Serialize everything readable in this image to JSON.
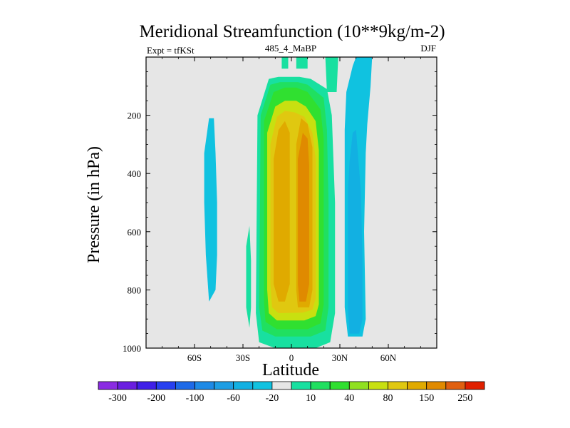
{
  "chart_data": {
    "type": "contour",
    "title": "Meridional Streamfunction (10**9kg/m-2)",
    "left_label": "Expt = tfKSt",
    "center_label": "485_4_MaBP",
    "right_label": "DJF",
    "xlabel": "Latitude",
    "ylabel": "Pressure (in hPa)",
    "xlim": [
      -90,
      90
    ],
    "ylim": [
      1000,
      0
    ],
    "x_ticks": [
      {
        "value": -60,
        "label": "60S"
      },
      {
        "value": -30,
        "label": "30S"
      },
      {
        "value": 0,
        "label": "0"
      },
      {
        "value": 30,
        "label": "30N"
      },
      {
        "value": 60,
        "label": "60N"
      }
    ],
    "y_ticks": [
      {
        "value": 200,
        "label": "200"
      },
      {
        "value": 400,
        "label": "400"
      },
      {
        "value": 600,
        "label": "600"
      },
      {
        "value": 800,
        "label": "800"
      },
      {
        "value": 1000,
        "label": "1000"
      }
    ],
    "background_color": "#e6e6e6",
    "levels": [
      {
        "min": -300,
        "label": "-300",
        "color": "#8a2be2"
      },
      {
        "min": -250,
        "label": "",
        "color": "#6a1fe0"
      },
      {
        "min": -200,
        "label": "-200",
        "color": "#4020e8"
      },
      {
        "min": -150,
        "label": "",
        "color": "#2840f0"
      },
      {
        "min": -100,
        "label": "-100",
        "color": "#1e6ae8"
      },
      {
        "min": -80,
        "label": "",
        "color": "#1e8ae6"
      },
      {
        "min": -60,
        "label": "-60",
        "color": "#1e9ee4"
      },
      {
        "min": -40,
        "label": "",
        "color": "#12b0e2"
      },
      {
        "min": -20,
        "label": "-20",
        "color": "#10c2e0"
      },
      {
        "min": -10,
        "label": "",
        "color": "#e6e6e6"
      },
      {
        "min": 10,
        "label": "10",
        "color": "#18e0a0"
      },
      {
        "min": 20,
        "label": "",
        "color": "#20e060"
      },
      {
        "min": 40,
        "label": "40",
        "color": "#30e030"
      },
      {
        "min": 60,
        "label": "",
        "color": "#90e020"
      },
      {
        "min": 80,
        "label": "80",
        "color": "#c8e010"
      },
      {
        "min": 100,
        "label": "",
        "color": "#e0c810"
      },
      {
        "min": 150,
        "label": "150",
        "color": "#e0aa00"
      },
      {
        "min": 200,
        "label": "",
        "color": "#e08a00"
      },
      {
        "min": 250,
        "label": "250",
        "color": "#e06010"
      },
      {
        "min": 300,
        "label": "",
        "color": "#e02000"
      }
    ],
    "regions": [
      {
        "fill_level": 10,
        "points": [
          [
            -10,
            1000
          ],
          [
            -20,
            980
          ],
          [
            -22,
            880
          ],
          [
            -21,
            200
          ],
          [
            -14,
            75
          ],
          [
            -8,
            68
          ],
          [
            5,
            68
          ],
          [
            12,
            75
          ],
          [
            22,
            110
          ],
          [
            25,
            200
          ],
          [
            27,
            500
          ],
          [
            27,
            880
          ],
          [
            24,
            980
          ],
          [
            15,
            1000
          ]
        ]
      },
      {
        "fill_level": 10,
        "points": [
          [
            -6,
            0
          ],
          [
            -2,
            0
          ],
          [
            -2,
            40
          ],
          [
            -6,
            40
          ]
        ]
      },
      {
        "fill_level": 10,
        "points": [
          [
            3,
            0
          ],
          [
            10,
            0
          ],
          [
            10,
            40
          ],
          [
            3,
            40
          ]
        ]
      },
      {
        "fill_level": 10,
        "points": [
          [
            21,
            0
          ],
          [
            29,
            0
          ],
          [
            28,
            120
          ],
          [
            22,
            120
          ]
        ]
      },
      {
        "fill_level": 10,
        "points": [
          [
            -28,
            650
          ],
          [
            -26,
            580
          ],
          [
            -25,
            700
          ],
          [
            -25,
            860
          ],
          [
            -26,
            930
          ],
          [
            -28,
            860
          ]
        ]
      },
      {
        "fill_level": 20,
        "points": [
          [
            -10,
            960
          ],
          [
            -18,
            940
          ],
          [
            -20,
            860
          ],
          [
            -19,
            200
          ],
          [
            -13,
            95
          ],
          [
            -7,
            86
          ],
          [
            4,
            86
          ],
          [
            10,
            95
          ],
          [
            20,
            140
          ],
          [
            22,
            250
          ],
          [
            23,
            500
          ],
          [
            23,
            860
          ],
          [
            21,
            940
          ],
          [
            12,
            960
          ]
        ]
      },
      {
        "fill_level": 40,
        "points": [
          [
            -9,
            935
          ],
          [
            -16,
            910
          ],
          [
            -17,
            840
          ],
          [
            -17,
            220
          ],
          [
            -11,
            120
          ],
          [
            -4,
            105
          ],
          [
            3,
            105
          ],
          [
            10,
            120
          ],
          [
            18,
            180
          ],
          [
            20,
            280
          ],
          [
            20,
            520
          ],
          [
            20,
            850
          ],
          [
            18,
            915
          ],
          [
            10,
            935
          ]
        ]
      },
      {
        "fill_level": 80,
        "points": [
          [
            -9,
            905
          ],
          [
            -14,
            880
          ],
          [
            -15,
            800
          ],
          [
            -15,
            260
          ],
          [
            -10,
            170
          ],
          [
            -4,
            150
          ],
          [
            3,
            150
          ],
          [
            9,
            170
          ],
          [
            15,
            220
          ],
          [
            17,
            320
          ],
          [
            17,
            850
          ],
          [
            15,
            890
          ],
          [
            8,
            905
          ]
        ]
      },
      {
        "fill_level": 100,
        "points": [
          [
            -8,
            880
          ],
          [
            -12,
            860
          ],
          [
            -13,
            780
          ],
          [
            -13,
            300
          ],
          [
            -9,
            205
          ],
          [
            -4,
            185
          ],
          [
            2,
            190
          ],
          [
            8,
            205
          ],
          [
            13,
            260
          ],
          [
            15,
            350
          ],
          [
            15,
            830
          ],
          [
            13,
            868
          ],
          [
            7,
            878
          ]
        ]
      },
      {
        "fill_level": 150,
        "points": [
          [
            -11,
            780
          ],
          [
            -11,
            350
          ],
          [
            -8,
            250
          ],
          [
            -4,
            220
          ],
          [
            -1,
            260
          ],
          [
            -1,
            780
          ],
          [
            -4,
            840
          ],
          [
            -8,
            840
          ]
        ]
      },
      {
        "fill_level": 150,
        "points": [
          [
            4,
            860
          ],
          [
            3,
            800
          ],
          [
            3,
            300
          ],
          [
            6,
            210
          ],
          [
            10,
            230
          ],
          [
            13,
            310
          ],
          [
            13,
            800
          ],
          [
            11,
            860
          ]
        ]
      },
      {
        "fill_level": 200,
        "points": [
          [
            5,
            840
          ],
          [
            4,
            780
          ],
          [
            4,
            350
          ],
          [
            7,
            260
          ],
          [
            10,
            280
          ],
          [
            11,
            370
          ],
          [
            11,
            780
          ],
          [
            9,
            840
          ]
        ]
      },
      {
        "fill_level": -20,
        "points": [
          [
            -53,
            680
          ],
          [
            -54,
            500
          ],
          [
            -54,
            330
          ],
          [
            -51,
            210
          ],
          [
            -48,
            210
          ],
          [
            -47,
            330
          ],
          [
            -46,
            500
          ],
          [
            -46,
            680
          ],
          [
            -47,
            800
          ],
          [
            -51,
            840
          ]
        ]
      },
      {
        "fill_level": -20,
        "points": [
          [
            35,
            960
          ],
          [
            33,
            860
          ],
          [
            33,
            500
          ],
          [
            33,
            250
          ],
          [
            34,
            120
          ],
          [
            38,
            30
          ],
          [
            40,
            0
          ],
          [
            50,
            0
          ],
          [
            49,
            100
          ],
          [
            47,
            230
          ],
          [
            46,
            330
          ],
          [
            45,
            600
          ],
          [
            46,
            900
          ],
          [
            44,
            960
          ]
        ]
      },
      {
        "fill_level": -40,
        "points": [
          [
            36,
            950
          ],
          [
            35,
            860
          ],
          [
            35,
            460
          ],
          [
            36,
            360
          ],
          [
            38,
            260
          ],
          [
            40,
            250
          ],
          [
            41,
            320
          ],
          [
            43,
            460
          ],
          [
            44,
            700
          ],
          [
            44,
            900
          ],
          [
            42,
            950
          ]
        ]
      }
    ]
  }
}
